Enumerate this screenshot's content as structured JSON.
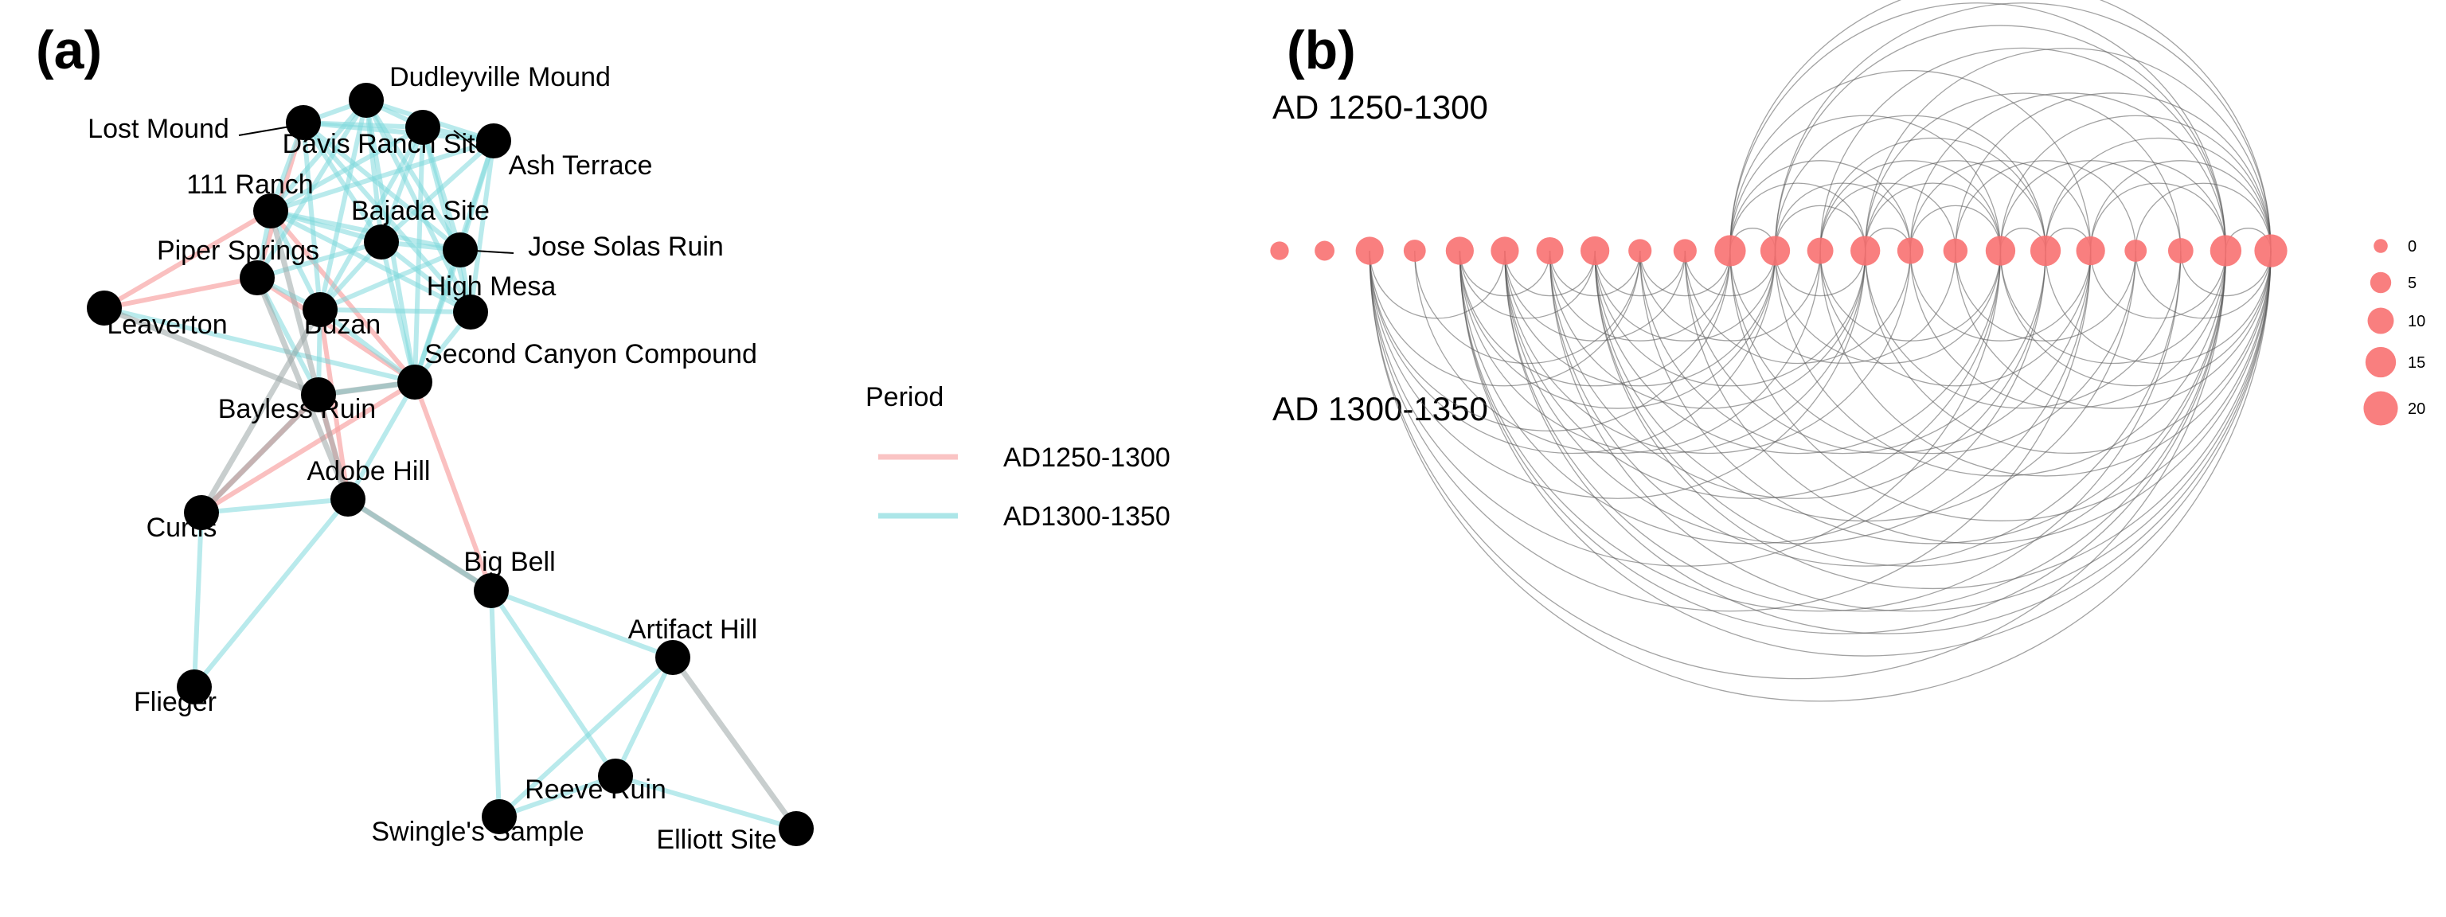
{
  "panels": {
    "a": {
      "letter": "(a)"
    },
    "b": {
      "letter": "(b)"
    }
  },
  "colors": {
    "period_1250": "#f8a5a5",
    "period_1300": "#7fd8dc",
    "overlap_edge": "#9aa6a6",
    "node": "#000000",
    "arc": "#555555",
    "arc_node": "#f87171"
  },
  "network": {
    "nodes": [
      {
        "id": "dudleyville",
        "label": "Dudleyville Mound"
      },
      {
        "id": "lost",
        "label": "Lost Mound"
      },
      {
        "id": "davis",
        "label": "Davis Ranch Site"
      },
      {
        "id": "ash",
        "label": "Ash Terrace"
      },
      {
        "id": "ranch111",
        "label": "111 Ranch"
      },
      {
        "id": "bajada",
        "label": "Bajada Site"
      },
      {
        "id": "jose",
        "label": "Jose Solas Ruin"
      },
      {
        "id": "piper",
        "label": "Piper Springs"
      },
      {
        "id": "highmesa",
        "label": "High Mesa"
      },
      {
        "id": "leaverton",
        "label": "Leaverton"
      },
      {
        "id": "buzan",
        "label": "Buzan"
      },
      {
        "id": "secondcanyon",
        "label": "Second Canyon Compound"
      },
      {
        "id": "bayless",
        "label": "Bayless Ruin"
      },
      {
        "id": "adobe",
        "label": "Adobe Hill"
      },
      {
        "id": "curtis",
        "label": "Curtis"
      },
      {
        "id": "bigbell",
        "label": "Big Bell"
      },
      {
        "id": "artifact",
        "label": "Artifact Hill"
      },
      {
        "id": "flieger",
        "label": "Flieger"
      },
      {
        "id": "reeve",
        "label": "Reeve Ruin"
      },
      {
        "id": "swingle",
        "label": "Swingle's Sample"
      },
      {
        "id": "elliott",
        "label": "Elliott Site"
      }
    ],
    "edges_1250_1300": [
      [
        "piper",
        "leaverton"
      ],
      [
        "ranch111",
        "leaverton"
      ],
      [
        "curtis",
        "bayless"
      ],
      [
        "curtis",
        "secondcanyon"
      ],
      [
        "secondcanyon",
        "bigbell"
      ],
      [
        "piper",
        "secondcanyon"
      ],
      [
        "ranch111",
        "secondcanyon"
      ],
      [
        "buzan",
        "adobe"
      ],
      [
        "lost",
        "piper"
      ],
      [
        "bayless",
        "adobe"
      ]
    ],
    "edges_1300_1350": [
      [
        "dudleyville",
        "lost"
      ],
      [
        "dudleyville",
        "davis"
      ],
      [
        "dudleyville",
        "ash"
      ],
      [
        "dudleyville",
        "ranch111"
      ],
      [
        "dudleyville",
        "bajada"
      ],
      [
        "dudleyville",
        "jose"
      ],
      [
        "dudleyville",
        "piper"
      ],
      [
        "dudleyville",
        "highmesa"
      ],
      [
        "dudleyville",
        "buzan"
      ],
      [
        "dudleyville",
        "secondcanyon"
      ],
      [
        "lost",
        "davis"
      ],
      [
        "lost",
        "ash"
      ],
      [
        "lost",
        "ranch111"
      ],
      [
        "lost",
        "bajada"
      ],
      [
        "lost",
        "jose"
      ],
      [
        "lost",
        "buzan"
      ],
      [
        "lost",
        "highmesa"
      ],
      [
        "davis",
        "ash"
      ],
      [
        "davis",
        "ranch111"
      ],
      [
        "davis",
        "bajada"
      ],
      [
        "davis",
        "jose"
      ],
      [
        "davis",
        "highmesa"
      ],
      [
        "davis",
        "buzan"
      ],
      [
        "davis",
        "secondcanyon"
      ],
      [
        "ash",
        "bajada"
      ],
      [
        "ash",
        "jose"
      ],
      [
        "ash",
        "highmesa"
      ],
      [
        "ash",
        "ranch111"
      ],
      [
        "ash",
        "secondcanyon"
      ],
      [
        "ranch111",
        "bajada"
      ],
      [
        "ranch111",
        "piper"
      ],
      [
        "ranch111",
        "buzan"
      ],
      [
        "ranch111",
        "jose"
      ],
      [
        "ranch111",
        "highmesa"
      ],
      [
        "bajada",
        "jose"
      ],
      [
        "bajada",
        "highmesa"
      ],
      [
        "bajada",
        "buzan"
      ],
      [
        "bajada",
        "piper"
      ],
      [
        "bajada",
        "secondcanyon"
      ],
      [
        "jose",
        "highmesa"
      ],
      [
        "jose",
        "secondcanyon"
      ],
      [
        "jose",
        "buzan"
      ],
      [
        "piper",
        "buzan"
      ],
      [
        "piper",
        "bayless"
      ],
      [
        "highmesa",
        "buzan"
      ],
      [
        "highmesa",
        "secondcanyon"
      ],
      [
        "buzan",
        "secondcanyon"
      ],
      [
        "buzan",
        "bayless"
      ],
      [
        "secondcanyon",
        "bayless"
      ],
      [
        "leaverton",
        "secondcanyon"
      ],
      [
        "adobe",
        "curtis"
      ],
      [
        "adobe",
        "flieger"
      ],
      [
        "adobe",
        "bigbell"
      ],
      [
        "curtis",
        "flieger"
      ],
      [
        "bigbell",
        "artifact"
      ],
      [
        "bigbell",
        "reeve"
      ],
      [
        "bigbell",
        "swingle"
      ],
      [
        "artifact",
        "reeve"
      ],
      [
        "artifact",
        "swingle"
      ],
      [
        "reeve",
        "elliott"
      ],
      [
        "swingle",
        "reeve"
      ],
      [
        "adobe",
        "secondcanyon"
      ]
    ],
    "edges_overlap": [
      [
        "bayless",
        "curtis"
      ],
      [
        "bayless",
        "adobe"
      ],
      [
        "adobe",
        "bigbell"
      ],
      [
        "artifact",
        "elliott"
      ],
      [
        "buzan",
        "curtis"
      ],
      [
        "leaverton",
        "bayless"
      ],
      [
        "ranch111",
        "bayless"
      ],
      [
        "piper",
        "adobe"
      ],
      [
        "bayless",
        "secondcanyon"
      ]
    ]
  },
  "legend": {
    "title": "Period",
    "items": [
      {
        "label": "AD1250-1300",
        "color": "#f8a5a5"
      },
      {
        "label": "AD1300-1350",
        "color": "#7fd8dc"
      }
    ]
  },
  "arc_diagram": {
    "period_top": "AD 1250-1300",
    "period_bottom": "AD 1300-1350",
    "node_degrees": [
      3,
      4,
      12,
      6,
      12,
      12,
      11,
      13,
      7,
      7,
      16,
      14,
      10,
      14,
      10,
      8,
      14,
      15,
      13,
      6,
      9,
      16,
      18
    ],
    "arcs_top": [
      [
        10,
        21
      ],
      [
        10,
        22
      ],
      [
        10,
        18
      ],
      [
        10,
        16
      ],
      [
        10,
        13
      ],
      [
        11,
        22
      ],
      [
        11,
        21
      ],
      [
        11,
        17
      ],
      [
        11,
        14
      ],
      [
        13,
        22
      ],
      [
        13,
        20
      ],
      [
        13,
        17
      ],
      [
        13,
        16
      ],
      [
        14,
        21
      ],
      [
        14,
        18
      ],
      [
        15,
        22
      ],
      [
        15,
        19
      ],
      [
        16,
        22
      ],
      [
        16,
        20
      ],
      [
        17,
        21
      ],
      [
        17,
        22
      ],
      [
        18,
        22
      ],
      [
        12,
        21
      ],
      [
        12,
        17
      ],
      [
        10,
        11
      ],
      [
        11,
        13
      ],
      [
        16,
        17
      ],
      [
        17,
        18
      ],
      [
        18,
        21
      ],
      [
        21,
        22
      ],
      [
        13,
        14
      ],
      [
        14,
        16
      ],
      [
        10,
        14
      ],
      [
        12,
        16
      ],
      [
        19,
        22
      ],
      [
        12,
        15
      ]
    ],
    "arcs_bottom": [
      [
        2,
        22
      ],
      [
        2,
        21
      ],
      [
        2,
        18
      ],
      [
        2,
        16
      ],
      [
        2,
        13
      ],
      [
        2,
        11
      ],
      [
        2,
        10
      ],
      [
        2,
        8
      ],
      [
        2,
        5
      ],
      [
        4,
        22
      ],
      [
        4,
        21
      ],
      [
        4,
        20
      ],
      [
        4,
        17
      ],
      [
        4,
        13
      ],
      [
        4,
        11
      ],
      [
        4,
        10
      ],
      [
        4,
        7
      ],
      [
        5,
        22
      ],
      [
        5,
        21
      ],
      [
        5,
        18
      ],
      [
        5,
        16
      ],
      [
        5,
        14
      ],
      [
        5,
        11
      ],
      [
        5,
        9
      ],
      [
        5,
        7
      ],
      [
        6,
        22
      ],
      [
        6,
        20
      ],
      [
        6,
        17
      ],
      [
        6,
        13
      ],
      [
        6,
        10
      ],
      [
        7,
        22
      ],
      [
        7,
        21
      ],
      [
        7,
        19
      ],
      [
        7,
        16
      ],
      [
        7,
        13
      ],
      [
        7,
        11
      ],
      [
        7,
        9
      ],
      [
        8,
        21
      ],
      [
        8,
        17
      ],
      [
        8,
        12
      ],
      [
        8,
        10
      ],
      [
        9,
        22
      ],
      [
        9,
        18
      ],
      [
        9,
        14
      ],
      [
        9,
        11
      ],
      [
        10,
        22
      ],
      [
        10,
        19
      ],
      [
        10,
        15
      ],
      [
        11,
        21
      ],
      [
        11,
        16
      ],
      [
        11,
        13
      ],
      [
        12,
        22
      ],
      [
        12,
        18
      ],
      [
        13,
        22
      ],
      [
        13,
        20
      ],
      [
        14,
        21
      ],
      [
        14,
        18
      ],
      [
        15,
        22
      ],
      [
        15,
        19
      ],
      [
        16,
        22
      ],
      [
        16,
        21
      ],
      [
        17,
        22
      ],
      [
        18,
        21
      ],
      [
        19,
        22
      ],
      [
        20,
        22
      ],
      [
        3,
        12
      ],
      [
        3,
        8
      ],
      [
        12,
        16
      ],
      [
        6,
        8
      ],
      [
        4,
        6
      ]
    ],
    "size_legend": [
      {
        "label": "0",
        "value": 0
      },
      {
        "label": "5",
        "value": 5
      },
      {
        "label": "10",
        "value": 10
      },
      {
        "label": "15",
        "value": 15
      },
      {
        "label": "20",
        "value": 20
      }
    ]
  }
}
